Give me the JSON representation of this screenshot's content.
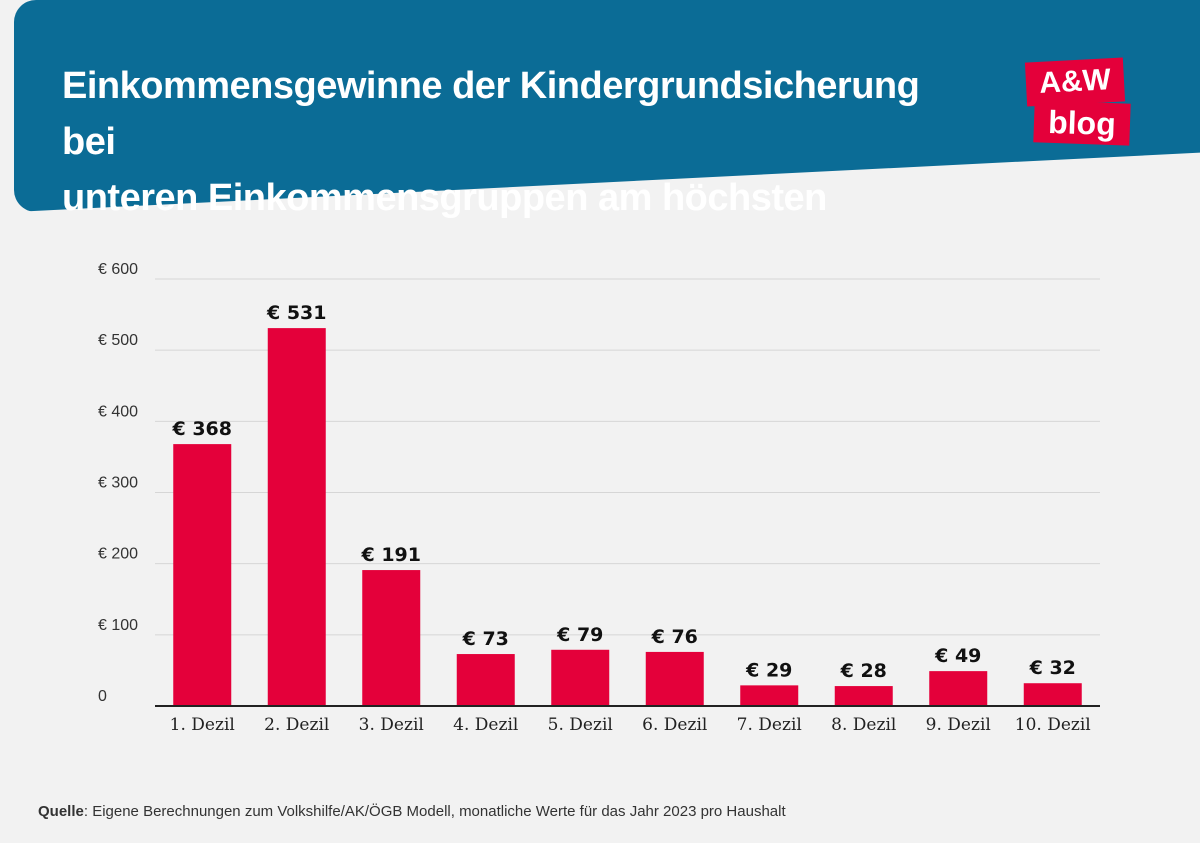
{
  "header": {
    "title_line1": "Einkommensgewinne der Kindergrundsicherung bei",
    "title_line2": "unteren Einkommensgruppen am höchsten"
  },
  "logo": {
    "top": "A&W",
    "bottom": "blog"
  },
  "colors": {
    "band": "#0b6c96",
    "bar": "#e4003a",
    "accent": "#e4003a"
  },
  "chart_data": {
    "type": "bar",
    "title": "Einkommensgewinne der Kindergrundsicherung bei unteren Einkommensgruppen am höchsten",
    "categories": [
      "1. Dezil",
      "2. Dezil",
      "3. Dezil",
      "4. Dezil",
      "5. Dezil",
      "6. Dezil",
      "7. Dezil",
      "8. Dezil",
      "9. Dezil",
      "10. Dezil"
    ],
    "values": [
      368,
      531,
      191,
      73,
      79,
      76,
      29,
      28,
      49,
      32
    ],
    "data_labels": [
      "€ 368",
      "€ 531",
      "€ 191",
      "€ 73",
      "€ 79",
      "€ 76",
      "€ 29",
      "€ 28",
      "€ 49",
      "€ 32"
    ],
    "y_ticks": [
      0,
      100,
      200,
      300,
      400,
      500,
      600
    ],
    "y_tick_labels": [
      "0",
      "€ 100",
      "€ 200",
      "€ 300",
      "€ 400",
      "€ 500",
      "€ 600"
    ],
    "ylim": [
      0,
      600
    ],
    "xlabel": "",
    "ylabel": "",
    "grid": true
  },
  "source": {
    "label": "Quelle",
    "text": ": Eigene Berechnungen zum Volkshilfe/AK/ÖGB Modell, monatliche Werte für das Jahr 2023 pro Haushalt"
  }
}
